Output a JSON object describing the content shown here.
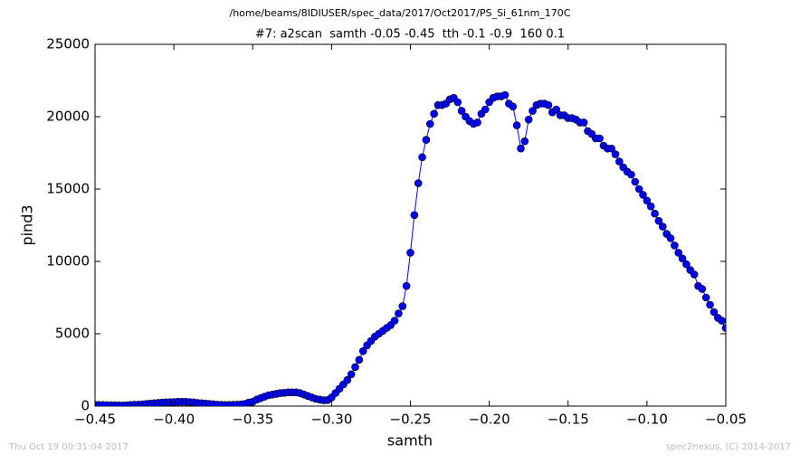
{
  "chart_data": {
    "type": "line",
    "title": "/home/beams/8IDIUSER/spec_data/2017/Oct2017/PS_Si_61nm_170C",
    "subtitle": "#7: a2scan  samth -0.05 -0.45  tth -0.1 -0.9  160 0.1",
    "x_label": "samth",
    "y_label": "pind3",
    "footer_left": "Thu Oct 19 00:31:04 2017",
    "footer_right": "spec2nexus, (C) 2014-2017",
    "x": [
      -0.45,
      -0.4475,
      -0.445,
      -0.4425,
      -0.44,
      -0.4375,
      -0.435,
      -0.4325,
      -0.43,
      -0.4275,
      -0.425,
      -0.4225,
      -0.42,
      -0.4175,
      -0.415,
      -0.4125,
      -0.41,
      -0.4075,
      -0.405,
      -0.4025,
      -0.4,
      -0.3975,
      -0.395,
      -0.3925,
      -0.39,
      -0.3875,
      -0.385,
      -0.3825,
      -0.38,
      -0.3775,
      -0.375,
      -0.3725,
      -0.37,
      -0.3675,
      -0.365,
      -0.3625,
      -0.36,
      -0.3575,
      -0.355,
      -0.3525,
      -0.35,
      -0.3475,
      -0.345,
      -0.3425,
      -0.34,
      -0.3375,
      -0.335,
      -0.3325,
      -0.33,
      -0.3275,
      -0.325,
      -0.3225,
      -0.32,
      -0.3175,
      -0.315,
      -0.3125,
      -0.31,
      -0.3075,
      -0.305,
      -0.3025,
      -0.3,
      -0.2975,
      -0.295,
      -0.2925,
      -0.29,
      -0.2875,
      -0.285,
      -0.2825,
      -0.28,
      -0.2775,
      -0.275,
      -0.2725,
      -0.27,
      -0.2675,
      -0.265,
      -0.2625,
      -0.26,
      -0.2575,
      -0.255,
      -0.2525,
      -0.25,
      -0.2475,
      -0.245,
      -0.2425,
      -0.24,
      -0.2375,
      -0.235,
      -0.2325,
      -0.23,
      -0.2275,
      -0.225,
      -0.2225,
      -0.22,
      -0.2175,
      -0.215,
      -0.2125,
      -0.21,
      -0.2075,
      -0.205,
      -0.2025,
      -0.2,
      -0.1975,
      -0.195,
      -0.1925,
      -0.19,
      -0.1875,
      -0.185,
      -0.1825,
      -0.18,
      -0.1775,
      -0.175,
      -0.1725,
      -0.17,
      -0.1675,
      -0.165,
      -0.1625,
      -0.16,
      -0.1575,
      -0.155,
      -0.1525,
      -0.15,
      -0.1475,
      -0.145,
      -0.1425,
      -0.14,
      -0.1375,
      -0.135,
      -0.1325,
      -0.13,
      -0.1275,
      -0.125,
      -0.1225,
      -0.12,
      -0.1175,
      -0.115,
      -0.1125,
      -0.11,
      -0.1075,
      -0.105,
      -0.1025,
      -0.1,
      -0.0975,
      -0.095,
      -0.0925,
      -0.09,
      -0.0875,
      -0.085,
      -0.0825,
      -0.08,
      -0.0775,
      -0.075,
      -0.0725,
      -0.07,
      -0.0675,
      -0.065,
      -0.0625,
      -0.06,
      -0.0575,
      -0.055,
      -0.0525,
      -0.05
    ],
    "series": [
      {
        "color": "#0000ff",
        "values": [
          100,
          80,
          80,
          70,
          70,
          60,
          50,
          40,
          60,
          80,
          100,
          100,
          120,
          150,
          180,
          200,
          220,
          250,
          260,
          270,
          280,
          300,
          300,
          300,
          280,
          260,
          220,
          200,
          180,
          150,
          130,
          100,
          90,
          80,
          80,
          90,
          100,
          120,
          150,
          250,
          300,
          450,
          550,
          650,
          750,
          800,
          850,
          900,
          920,
          950,
          950,
          950,
          900,
          800,
          700,
          600,
          500,
          450,
          400,
          420,
          600,
          900,
          1200,
          1500,
          1800,
          2200,
          2700,
          3200,
          3800,
          4200,
          4500,
          4800,
          5000,
          5200,
          5400,
          5600,
          5900,
          6400,
          6900,
          8300,
          10600,
          13200,
          15400,
          17200,
          18400,
          19500,
          20200,
          20800,
          20800,
          20900,
          21200,
          21300,
          21000,
          20400,
          20000,
          19700,
          19500,
          19600,
          20200,
          20500,
          21000,
          21300,
          21400,
          21400,
          21500,
          20900,
          20700,
          19400,
          17800,
          18300,
          19800,
          20400,
          20800,
          20900,
          20900,
          20800,
          20300,
          20500,
          20100,
          20100,
          19900,
          19900,
          19800,
          19600,
          19600,
          19000,
          18800,
          18500,
          18500,
          18000,
          17800,
          17800,
          17400,
          16900,
          16500,
          16200,
          16000,
          15500,
          15000,
          14600,
          14200,
          13800,
          13300,
          12800,
          12400,
          11900,
          11600,
          11100,
          10600,
          10200,
          9800,
          9400,
          9100,
          8300,
          8100,
          7500,
          7000,
          6500,
          6100,
          5900,
          5400
        ]
      }
    ],
    "xlim": [
      -0.45,
      -0.05
    ],
    "xticks": [
      {
        "value": -0.45,
        "label": "−0.45"
      },
      {
        "value": -0.4,
        "label": "−0.40"
      },
      {
        "value": -0.35,
        "label": "−0.35"
      },
      {
        "value": -0.3,
        "label": "−0.30"
      },
      {
        "value": -0.25,
        "label": "−0.25"
      },
      {
        "value": -0.2,
        "label": "−0.20"
      },
      {
        "value": -0.15,
        "label": "−0.15"
      },
      {
        "value": -0.1,
        "label": "−0.10"
      },
      {
        "value": -0.05,
        "label": "−0.05"
      }
    ],
    "ylim": [
      0,
      25000
    ],
    "yticks": [
      0,
      5000,
      10000,
      15000,
      20000,
      25000
    ],
    "grid": false
  }
}
